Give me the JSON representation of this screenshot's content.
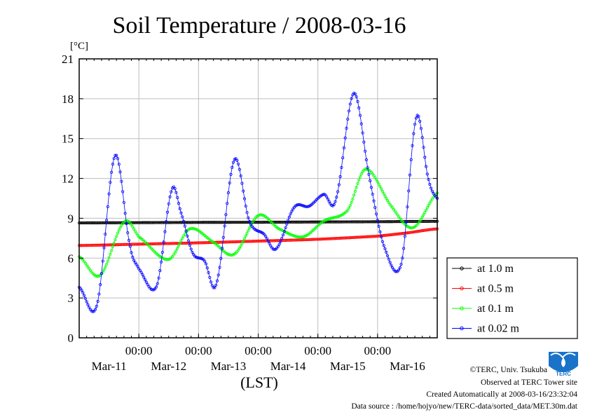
{
  "chart_data": {
    "type": "line",
    "title": "Soil Temperature / 2008-03-16",
    "ylabel": "[°C]",
    "xlabel": "(LST)",
    "ylim": [
      0,
      21
    ],
    "yticks": [
      0,
      3,
      6,
      9,
      12,
      15,
      18,
      21
    ],
    "xlim": [
      0,
      6
    ],
    "xtick_positions": [
      1,
      2,
      3,
      4,
      5
    ],
    "xtick_time_label": "00:00",
    "day_labels": [
      "Mar-11",
      "Mar-12",
      "Mar-13",
      "Mar-14",
      "Mar-15",
      "Mar-16"
    ],
    "day_label_positions": [
      0.5,
      1.5,
      2.5,
      3.5,
      4.5,
      5.5
    ],
    "grid": true,
    "legend_position": "right-bottom",
    "series": [
      {
        "name": "at 1.0 m",
        "color": "#000000",
        "x": [
          0,
          1,
          2,
          3,
          4,
          5,
          6
        ],
        "values": [
          8.65,
          8.67,
          8.69,
          8.7,
          8.72,
          8.74,
          8.77
        ]
      },
      {
        "name": "at 0.5 m",
        "color": "#ff0000",
        "x": [
          0,
          1,
          2,
          3,
          4,
          5,
          5.5,
          6
        ],
        "values": [
          6.95,
          7.05,
          7.15,
          7.28,
          7.42,
          7.65,
          7.9,
          8.2
        ]
      },
      {
        "name": "at 0.1 m",
        "color": "#00ff00",
        "x": [
          0,
          0.35,
          0.75,
          1.0,
          1.5,
          1.85,
          2.25,
          2.6,
          3.0,
          3.35,
          3.75,
          4.1,
          4.5,
          4.8,
          5.25,
          5.6,
          6.0
        ],
        "values": [
          6.1,
          4.7,
          8.7,
          7.6,
          5.9,
          8.2,
          7.2,
          6.3,
          9.2,
          8.2,
          7.6,
          8.8,
          9.6,
          12.7,
          9.8,
          8.3,
          10.9
        ]
      },
      {
        "name": "at 0.02 m",
        "color": "#0000ff",
        "x": [
          0,
          0.3,
          0.6,
          0.85,
          1.0,
          1.3,
          1.55,
          1.7,
          1.9,
          2.1,
          2.3,
          2.6,
          2.85,
          3.1,
          3.3,
          3.6,
          3.85,
          4.1,
          4.3,
          4.6,
          4.85,
          5.1,
          5.4,
          5.65,
          5.85,
          6.0
        ],
        "values": [
          3.8,
          2.5,
          13.7,
          7.0,
          5.2,
          3.9,
          11.1,
          9.5,
          6.4,
          5.8,
          4.1,
          13.4,
          8.8,
          7.8,
          6.7,
          9.8,
          9.9,
          10.8,
          10.4,
          18.4,
          12.4,
          7.0,
          5.6,
          16.6,
          12.0,
          10.5
        ]
      }
    ]
  },
  "credits": {
    "copyright": "©TERC, Univ. Tsukuba",
    "site": "Observed at TERC Tower site",
    "created": "Created Automatically at 2008-03-16/23:32:04",
    "source": "Data source : /home/hojyo/new/TERC-data/sorted_data/MET.30m.dat",
    "logo_text": "TERC"
  }
}
